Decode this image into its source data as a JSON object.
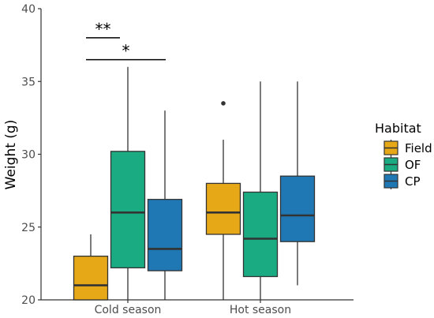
{
  "chart_data": {
    "type": "box",
    "ylabel": "Weight (g)",
    "ylim": [
      20,
      40
    ],
    "yticks": [
      20,
      25,
      30,
      35,
      40
    ],
    "categories": [
      "Cold season",
      "Hot season"
    ],
    "legend": {
      "title": "Habitat",
      "position": "right",
      "entries": [
        "Field",
        "OF",
        "CP"
      ]
    },
    "colors": {
      "Field": "#E6A817",
      "OF": "#1AAB82",
      "CP": "#1F78B4",
      "axis": "#333333",
      "line": "#333333"
    },
    "grid": false,
    "series": [
      {
        "name": "Field",
        "boxes": [
          {
            "category": "Cold season",
            "min": 20,
            "q1": 20,
            "median": 21,
            "q3": 23,
            "max": 24.5,
            "outliers": []
          },
          {
            "category": "Hot season",
            "min": 20,
            "q1": 24.5,
            "median": 26,
            "q3": 28,
            "max": 31,
            "outliers": [
              33.5
            ]
          }
        ]
      },
      {
        "name": "OF",
        "boxes": [
          {
            "category": "Cold season",
            "min": 20,
            "q1": 22.2,
            "median": 26,
            "q3": 30.2,
            "max": 36,
            "outliers": []
          },
          {
            "category": "Hot season",
            "min": 20,
            "q1": 21.6,
            "median": 24.2,
            "q3": 27.4,
            "max": 35,
            "outliers": []
          }
        ]
      },
      {
        "name": "CP",
        "boxes": [
          {
            "category": "Cold season",
            "min": 20,
            "q1": 22,
            "median": 23.5,
            "q3": 26.9,
            "max": 33,
            "outliers": []
          },
          {
            "category": "Hot season",
            "min": 21,
            "q1": 24,
            "median": 25.8,
            "q3": 28.5,
            "max": 35,
            "outliers": []
          }
        ]
      }
    ],
    "annotations": [
      {
        "category": "Cold season",
        "from": "Field",
        "to": "OF",
        "label": "**",
        "y": 38
      },
      {
        "category": "Cold season",
        "from": "Field",
        "to": "CP",
        "label": "*",
        "y": 36.5
      }
    ]
  }
}
